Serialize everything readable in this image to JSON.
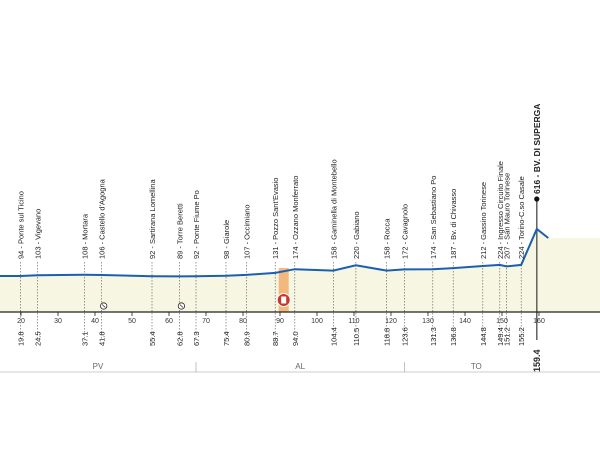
{
  "chart_data": {
    "type": "area",
    "title": "",
    "xlabel": "",
    "ylabel": "",
    "x_ticks": [
      20,
      30,
      40,
      50,
      60,
      70,
      80,
      90,
      100,
      110,
      120,
      130,
      140,
      150,
      160
    ],
    "x_tick_labels": [
      "20",
      "30",
      "40",
      "50",
      "60",
      "70",
      "80",
      "90",
      "100",
      "110",
      "120",
      "130",
      "140",
      "150",
      "160"
    ],
    "profile": [
      {
        "km": 0,
        "alt": 94
      },
      {
        "km": 19.8,
        "alt": 94
      },
      {
        "km": 24.5,
        "alt": 103
      },
      {
        "km": 37.1,
        "alt": 108
      },
      {
        "km": 41.8,
        "alt": 106
      },
      {
        "km": 55.4,
        "alt": 92
      },
      {
        "km": 62.8,
        "alt": 89
      },
      {
        "km": 67.3,
        "alt": 92
      },
      {
        "km": 75.4,
        "alt": 98
      },
      {
        "km": 80.9,
        "alt": 107
      },
      {
        "km": 88.7,
        "alt": 131
      },
      {
        "km": 94.0,
        "alt": 174
      },
      {
        "km": 104.4,
        "alt": 158
      },
      {
        "km": 110.5,
        "alt": 220
      },
      {
        "km": 118.8,
        "alt": 158
      },
      {
        "km": 123.6,
        "alt": 172
      },
      {
        "km": 131.3,
        "alt": 174
      },
      {
        "km": 136.8,
        "alt": 187
      },
      {
        "km": 144.8,
        "alt": 212
      },
      {
        "km": 149.4,
        "alt": 224
      },
      {
        "km": 151.2,
        "alt": 207
      },
      {
        "km": 155.2,
        "alt": 224
      },
      {
        "km": 159.4,
        "alt": 616
      },
      {
        "km": 162.5,
        "alt": 470
      }
    ],
    "points": [
      {
        "km_label": "19.8",
        "label": "94 - Ponte sul Ticino"
      },
      {
        "km_label": "24.5",
        "label": "103 - Vigevano"
      },
      {
        "km_label": "37.1",
        "label": "108 - Mortara"
      },
      {
        "km_label": "41.8",
        "label": "106 - Castello d'Agogna"
      },
      {
        "km_label": "55.4",
        "label": "92 - Sartirana Lomellina"
      },
      {
        "km_label": "62.8",
        "label": "89 - Torre Beretti"
      },
      {
        "km_label": "67.3",
        "label": "92 - Ponte Fiume Po"
      },
      {
        "km_label": "75.4",
        "label": "98 - Giarole"
      },
      {
        "km_label": "80.9",
        "label": "107 - Occimiano"
      },
      {
        "km_label": "88.7",
        "label": "131 - Pozzo Sant'Evasio"
      },
      {
        "km_label": "94.0",
        "label": "174 - Ozzano Monferrato"
      },
      {
        "km_label": "104.4",
        "label": "158 - Gaminella di Montebello"
      },
      {
        "km_label": "110.5",
        "label": "220 - Gabiano"
      },
      {
        "km_label": "118.8",
        "label": "158 - Rocca"
      },
      {
        "km_label": "123.6",
        "label": "172 - Cavagnolo"
      },
      {
        "km_label": "131.3",
        "label": "174 - San Sebastiano Po"
      },
      {
        "km_label": "136.8",
        "label": "187 - Bv. di Chivasso"
      },
      {
        "km_label": "144.8",
        "label": "212 - Gassino Torinese"
      },
      {
        "km_label": "149.4",
        "label": "224 - Ingresso Circuito Finale"
      },
      {
        "km_label": "151.2",
        "label": "207 - San Mauro Torinese"
      },
      {
        "km_label": "155.2",
        "label": "224 - Torino-C.so Casale"
      },
      {
        "km_label": "159.4",
        "label": "616 - BV. DI SUPERGA"
      }
    ],
    "provinces": [
      {
        "label": "PV",
        "from_km": 0,
        "to_km": 67.3
      },
      {
        "label": "AL",
        "from_km": 67.3,
        "to_km": 123.6
      },
      {
        "label": "TO",
        "from_km": 123.6,
        "to_km": 162.5
      }
    ],
    "feed_zone_km": 91,
    "level_crossings_km": [
      41.8,
      62.8
    ],
    "colors": {
      "profile_line": "#1b5fb0",
      "fill": "#f6f6e3",
      "axis": "#222222",
      "province_label": "#666666",
      "feed_zone": "#f2a35a",
      "feed_icon": "#c8372d"
    }
  }
}
